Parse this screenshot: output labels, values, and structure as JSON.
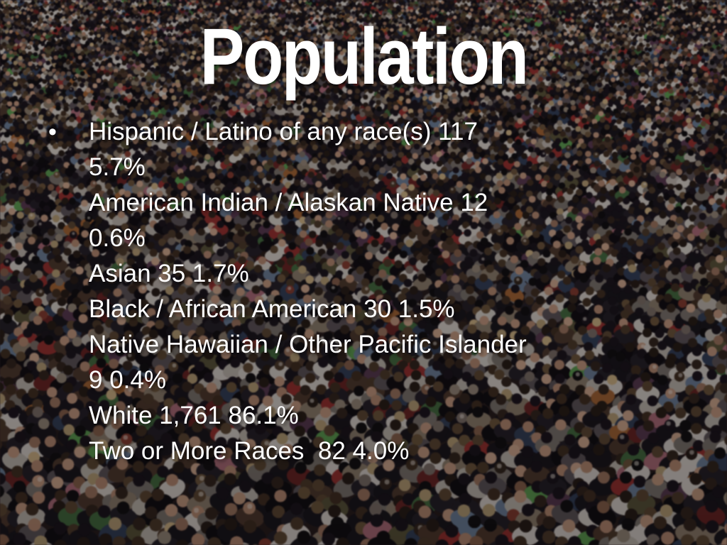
{
  "slide": {
    "title": "Population",
    "bullet_glyph": "•",
    "body_lines": [
      "Hispanic / Latino of any race(s) 117",
      "5.7%",
      "American Indian / Alaskan Native 12",
      "0.6%",
      "Asian 35 1.7%",
      "Black / African American 30 1.5%",
      "Native Hawaiian / Other Pacific Islander",
      "9 0.4%",
      "White 1,761 86.1%",
      "Two or More Races  82 4.0%"
    ],
    "population_stats": [
      {
        "group": "Hispanic / Latino of any race(s)",
        "count": "117",
        "percent": "5.7%"
      },
      {
        "group": "American Indian / Alaskan Native",
        "count": "12",
        "percent": "0.6%"
      },
      {
        "group": "Asian",
        "count": "35",
        "percent": "1.7%"
      },
      {
        "group": "Black / African American",
        "count": "30",
        "percent": "1.5%"
      },
      {
        "group": "Native Hawaiian / Other Pacific Islander",
        "count": "9",
        "percent": "0.4%"
      },
      {
        "group": "White",
        "count": "1,761",
        "percent": "86.1%"
      },
      {
        "group": "Two or More Races",
        "count": "82",
        "percent": "4.0%"
      }
    ],
    "text_color": "#ffffff",
    "background": {
      "kind": "crowd-photo",
      "base_color": "#241a1b",
      "overlay_color": "rgba(18,10,12,0.30)"
    }
  }
}
